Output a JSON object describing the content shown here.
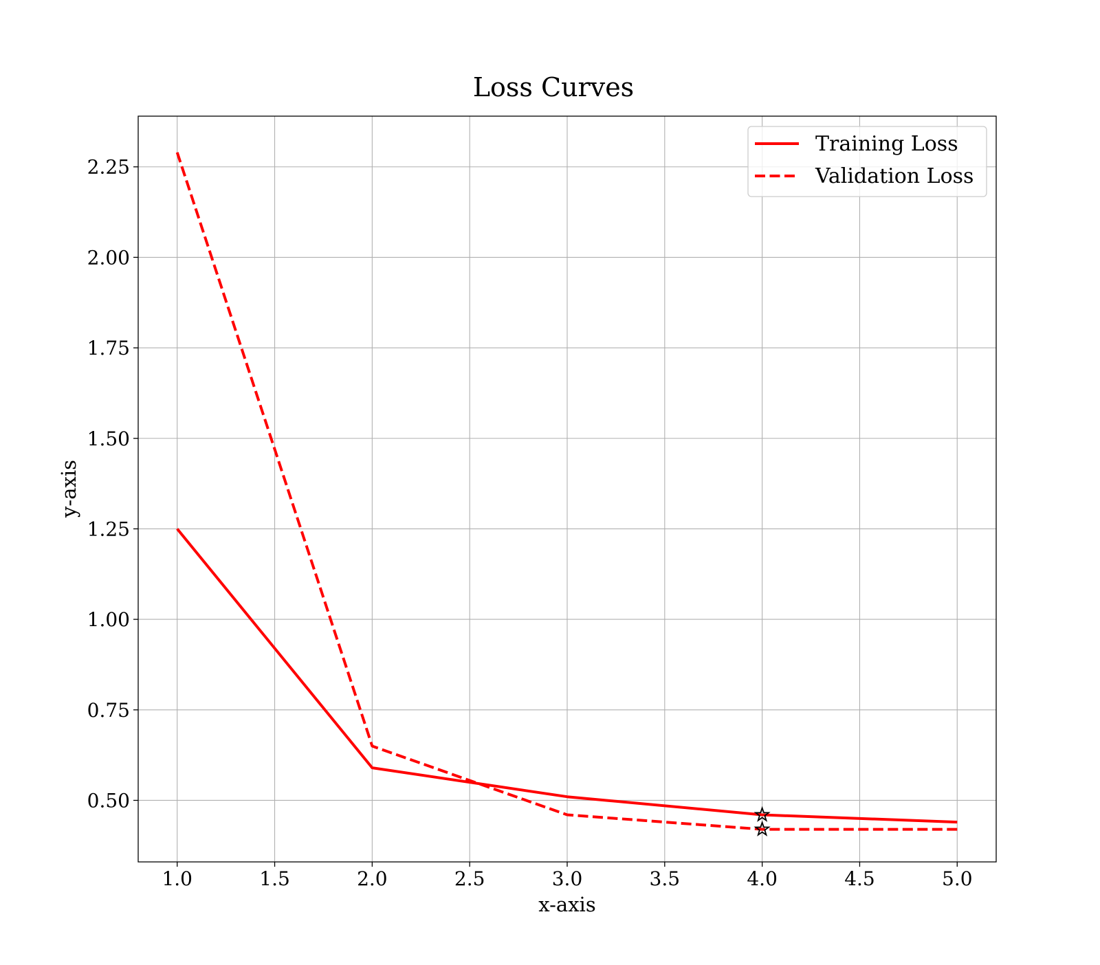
{
  "chart_data": {
    "type": "line",
    "title": "Loss Curves",
    "xlabel": "x-axis",
    "ylabel": "y-axis",
    "xlim": [
      0.8,
      5.2
    ],
    "ylim": [
      0.33,
      2.39
    ],
    "grid": true,
    "legend_position": "top-right",
    "x_ticks": [
      "1.0",
      "1.5",
      "2.0",
      "2.5",
      "3.0",
      "3.5",
      "4.0",
      "4.5",
      "5.0"
    ],
    "y_ticks": [
      "0.50",
      "0.75",
      "1.00",
      "1.25",
      "1.50",
      "1.75",
      "2.00",
      "2.25"
    ],
    "x": [
      1,
      2,
      3,
      4,
      5
    ],
    "series": [
      {
        "name": "Training Loss",
        "values": [
          1.25,
          0.59,
          0.51,
          0.46,
          0.44
        ],
        "color": "#ff0000",
        "line_style": "solid"
      },
      {
        "name": "Validation Loss",
        "values": [
          2.29,
          0.65,
          0.46,
          0.42,
          0.42
        ],
        "color": "#ff0000",
        "line_style": "dashed"
      }
    ],
    "markers": [
      {
        "marker": "star",
        "x": 4,
        "y": 0.46,
        "color": "#000000"
      },
      {
        "marker": "star",
        "x": 4,
        "y": 0.42,
        "color": "#000000"
      }
    ]
  }
}
